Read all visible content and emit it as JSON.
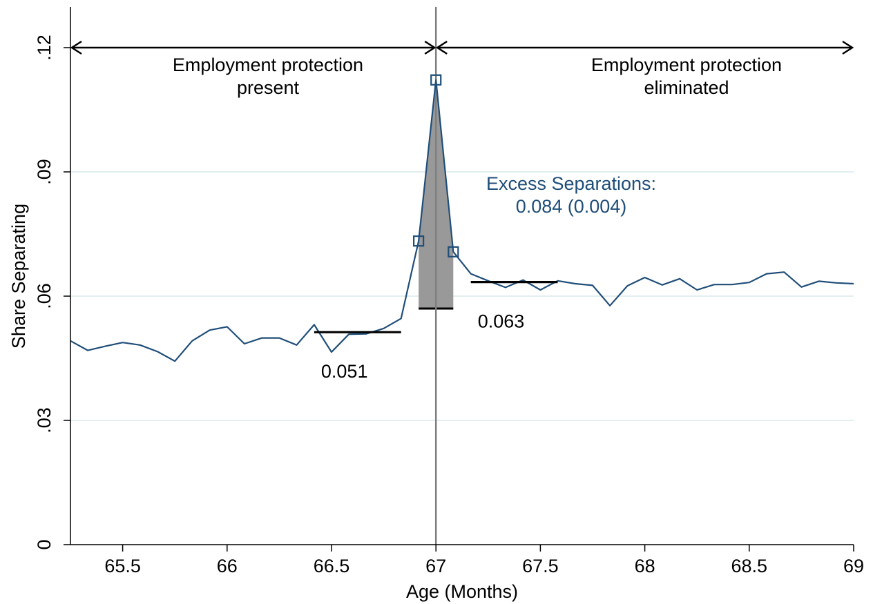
{
  "chart_data": {
    "type": "line",
    "xlabel": "Age (Months)",
    "ylabel": "Share Separating",
    "xlim": [
      65.25,
      69
    ],
    "ylim": [
      0,
      0.12
    ],
    "grid": true,
    "xticks": [
      {
        "value": 65.5,
        "label": "65.5"
      },
      {
        "value": 66,
        "label": "66"
      },
      {
        "value": 66.5,
        "label": "66.5"
      },
      {
        "value": 67,
        "label": "67"
      },
      {
        "value": 67.5,
        "label": "67.5"
      },
      {
        "value": 68,
        "label": "68"
      },
      {
        "value": 68.5,
        "label": "68.5"
      },
      {
        "value": 69,
        "label": "69"
      }
    ],
    "yticks": [
      {
        "value": 0,
        "label": "0"
      },
      {
        "value": 0.03,
        "label": ".03"
      },
      {
        "value": 0.06,
        "label": ".06"
      },
      {
        "value": 0.09,
        "label": ".09"
      },
      {
        "value": 0.12,
        "label": ".12"
      }
    ],
    "series": [
      {
        "color": "#1f4e79",
        "points": [
          [
            65.25,
            0.0492
          ],
          [
            65.333,
            0.0469
          ],
          [
            65.417,
            0.0479
          ],
          [
            65.5,
            0.0488
          ],
          [
            65.583,
            0.0482
          ],
          [
            65.667,
            0.0466
          ],
          [
            65.75,
            0.0443
          ],
          [
            65.833,
            0.0492
          ],
          [
            65.917,
            0.0518
          ],
          [
            66.0,
            0.0526
          ],
          [
            66.083,
            0.0485
          ],
          [
            66.167,
            0.0499
          ],
          [
            66.25,
            0.0499
          ],
          [
            66.333,
            0.0482
          ],
          [
            66.417,
            0.0531
          ],
          [
            66.5,
            0.0465
          ],
          [
            66.583,
            0.0508
          ],
          [
            66.667,
            0.0509
          ],
          [
            66.75,
            0.0522
          ],
          [
            66.833,
            0.0546
          ],
          [
            66.917,
            0.0733
          ],
          [
            67.0,
            0.1122
          ],
          [
            67.083,
            0.0707
          ],
          [
            67.167,
            0.0654
          ],
          [
            67.25,
            0.0637
          ],
          [
            67.333,
            0.0621
          ],
          [
            67.417,
            0.0639
          ],
          [
            67.5,
            0.0615
          ],
          [
            67.583,
            0.0637
          ],
          [
            67.667,
            0.063
          ],
          [
            67.75,
            0.0626
          ],
          [
            67.833,
            0.0577
          ],
          [
            67.917,
            0.0625
          ],
          [
            68.0,
            0.0645
          ],
          [
            68.083,
            0.0627
          ],
          [
            68.167,
            0.0642
          ],
          [
            68.25,
            0.0615
          ],
          [
            68.333,
            0.0628
          ],
          [
            68.417,
            0.0628
          ],
          [
            68.5,
            0.0633
          ],
          [
            68.583,
            0.0654
          ],
          [
            68.667,
            0.0658
          ],
          [
            68.75,
            0.0622
          ],
          [
            68.833,
            0.0636
          ],
          [
            68.917,
            0.0632
          ],
          [
            69.0,
            0.063
          ]
        ],
        "markers": [
          [
            66.917,
            0.0733
          ],
          [
            67.0,
            0.1122
          ],
          [
            67.083,
            0.0707
          ]
        ]
      }
    ],
    "vline": {
      "x": 67.0,
      "color": "#7f7f7f"
    },
    "excess_region": {
      "color": "#999999",
      "baseline": 0.057,
      "polygon": [
        [
          66.917,
          0.057
        ],
        [
          66.917,
          0.0733
        ],
        [
          67.0,
          0.1122
        ],
        [
          67.083,
          0.0707
        ],
        [
          67.083,
          0.057
        ]
      ]
    },
    "mean_lines": [
      {
        "x_start": 66.417,
        "x_end": 66.833,
        "y": 0.0513,
        "label": "0.051"
      },
      {
        "x_start": 67.167,
        "x_end": 67.583,
        "y": 0.0634,
        "label": "0.063"
      }
    ],
    "arrows": [
      {
        "x_start": 65.25,
        "x_end": 67.0,
        "y": 0.12
      },
      {
        "x_start": 67.0,
        "x_end": 69.0,
        "y": 0.12
      }
    ],
    "annotations": {
      "left_region": [
        "Employment protection",
        "present"
      ],
      "right_region": [
        "Employment protection",
        "eliminated"
      ],
      "excess": [
        "Excess Separations:",
        "0.084 (0.004)"
      ],
      "excess_color": "#1f4e79"
    }
  }
}
